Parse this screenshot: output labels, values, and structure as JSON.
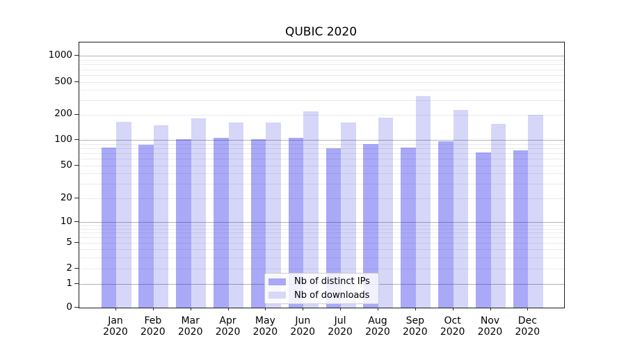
{
  "chart_data": {
    "type": "bar",
    "title": "QUBIC 2020",
    "scale": "symlog",
    "year": "2020",
    "categories": [
      "Jan",
      "Feb",
      "Mar",
      "Apr",
      "May",
      "Jun",
      "Jul",
      "Aug",
      "Sep",
      "Oct",
      "Nov",
      "Dec"
    ],
    "series": [
      {
        "name": "Nb of distinct IPs",
        "color": "#a9a9f8",
        "values": [
          82,
          88,
          102,
          106,
          102,
          106,
          80,
          90,
          81,
          96,
          72,
          75
        ]
      },
      {
        "name": "Nb of downloads",
        "color": "#d7d7f8",
        "values": [
          165,
          150,
          180,
          162,
          162,
          220,
          160,
          185,
          340,
          228,
          156,
          200
        ]
      }
    ],
    "y_ticks": [
      1000,
      500,
      200,
      100,
      50,
      20,
      10,
      5,
      2,
      1,
      0
    ],
    "ylim": [
      0,
      1400
    ],
    "grid": true,
    "legend_position": "lower center"
  }
}
